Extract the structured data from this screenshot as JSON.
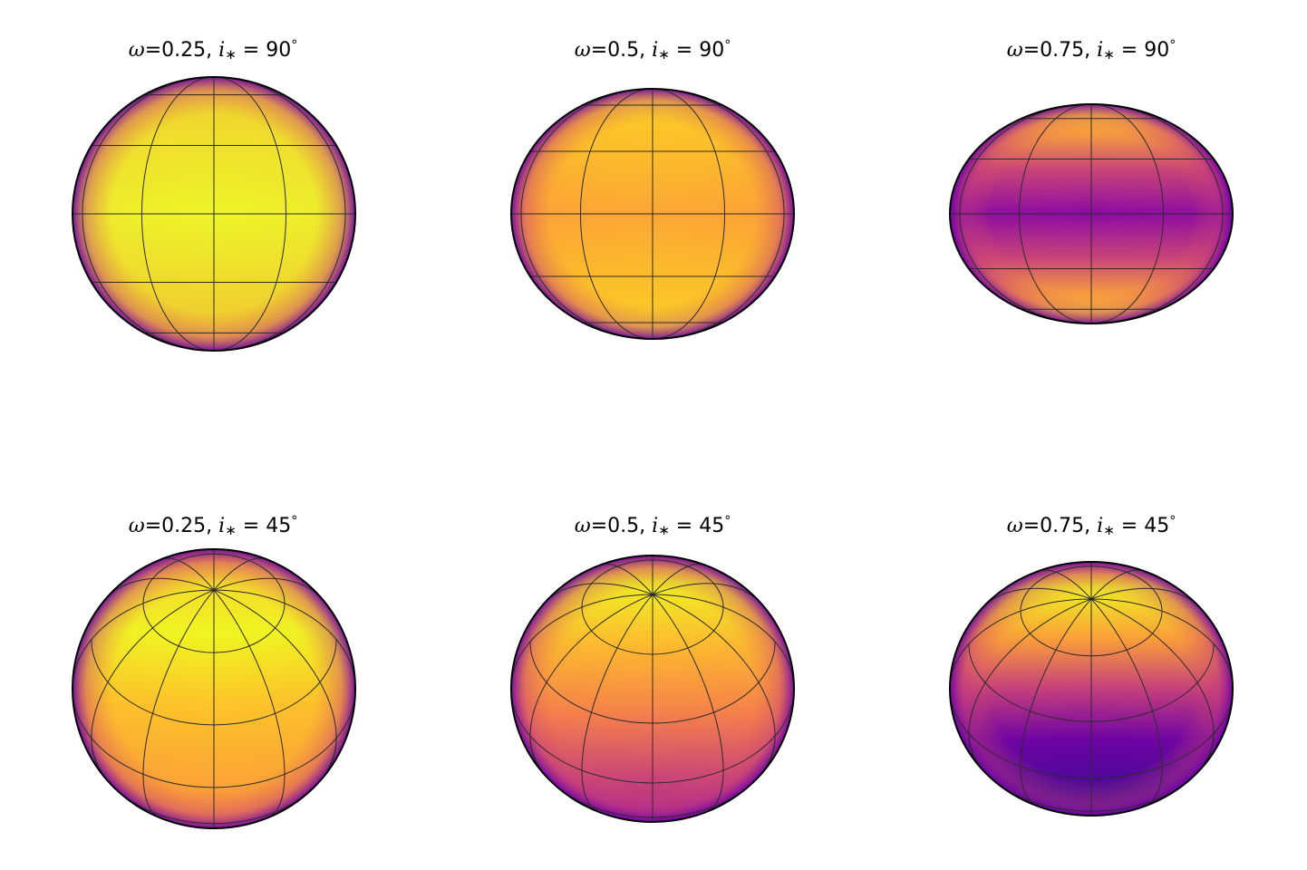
{
  "panels": [
    {
      "id": "p1",
      "omega_label": "ω",
      "omega_value": "0.25",
      "incl_symbol": "i",
      "incl_sub": "∗",
      "incl_value": "90",
      "deg": "°",
      "omega": 0.25,
      "inclination": 90
    },
    {
      "id": "p2",
      "omega_label": "ω",
      "omega_value": "0.5",
      "incl_symbol": "i",
      "incl_sub": "∗",
      "incl_value": "90",
      "deg": "°",
      "omega": 0.5,
      "inclination": 90
    },
    {
      "id": "p3",
      "omega_label": "ω",
      "omega_value": "0.75",
      "incl_symbol": "i",
      "incl_sub": "∗",
      "incl_value": "90",
      "deg": "°",
      "omega": 0.75,
      "inclination": 90
    },
    {
      "id": "p4",
      "omega_label": "ω",
      "omega_value": "0.25",
      "incl_symbol": "i",
      "incl_sub": "∗",
      "incl_value": "45",
      "deg": "°",
      "omega": 0.25,
      "inclination": 45
    },
    {
      "id": "p5",
      "omega_label": "ω",
      "omega_value": "0.5",
      "incl_symbol": "i",
      "incl_sub": "∗",
      "incl_value": "45",
      "deg": "°",
      "omega": 0.5,
      "inclination": 45
    },
    {
      "id": "p6",
      "omega_label": "ω",
      "omega_value": "0.75",
      "incl_symbol": "i",
      "incl_sub": "∗",
      "incl_value": "45",
      "deg": "°",
      "omega": 0.75,
      "inclination": 45
    }
  ],
  "colormap": {
    "name": "plasma",
    "stops": [
      "#f0f921",
      "#fdca26",
      "#fb9f3a",
      "#ed7953",
      "#d8576b",
      "#bd3786",
      "#9c179e",
      "#7201a8",
      "#46039f",
      "#0d0887"
    ]
  },
  "colors": {
    "grid": "#2b2b2b",
    "outline": "#000000"
  }
}
